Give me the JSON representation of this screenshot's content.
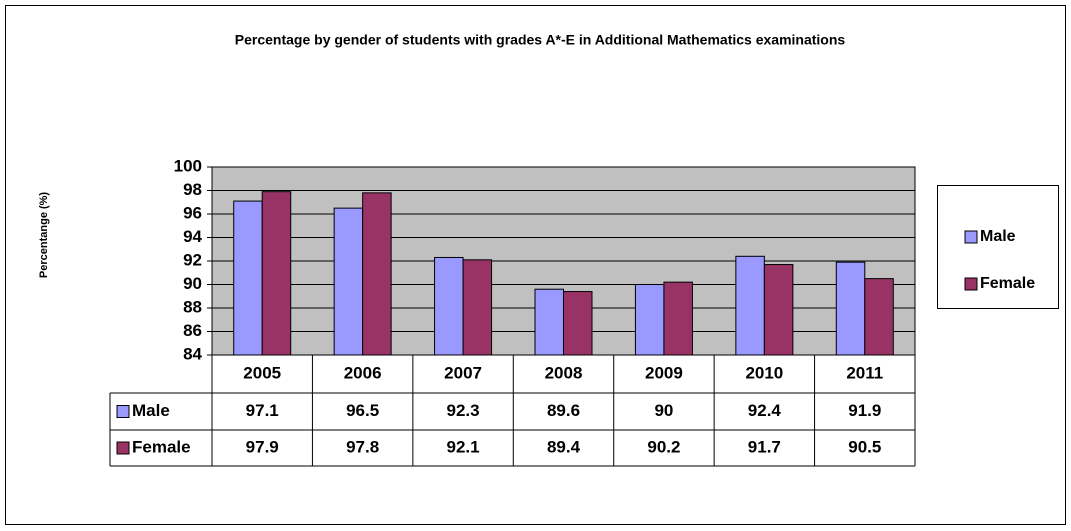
{
  "chart_data": {
    "type": "bar",
    "title": "Percentage by gender of students with grades A*-E in Additional Mathematics examinations",
    "y_label": "Percentange (%)",
    "categories": [
      "2005",
      "2006",
      "2007",
      "2008",
      "2009",
      "2010",
      "2011"
    ],
    "series": [
      {
        "name": "Male",
        "color": "#9999ff",
        "values": [
          97.1,
          96.5,
          92.3,
          89.6,
          90,
          92.4,
          91.9
        ]
      },
      {
        "name": "Female",
        "color": "#993366",
        "values": [
          97.9,
          97.8,
          92.1,
          89.4,
          90.2,
          91.7,
          90.5
        ]
      }
    ],
    "ylim": [
      84,
      100
    ],
    "yticks": [
      84,
      86,
      88,
      90,
      92,
      94,
      96,
      98,
      100
    ],
    "grid": true,
    "legend": "right",
    "data_table": true
  }
}
